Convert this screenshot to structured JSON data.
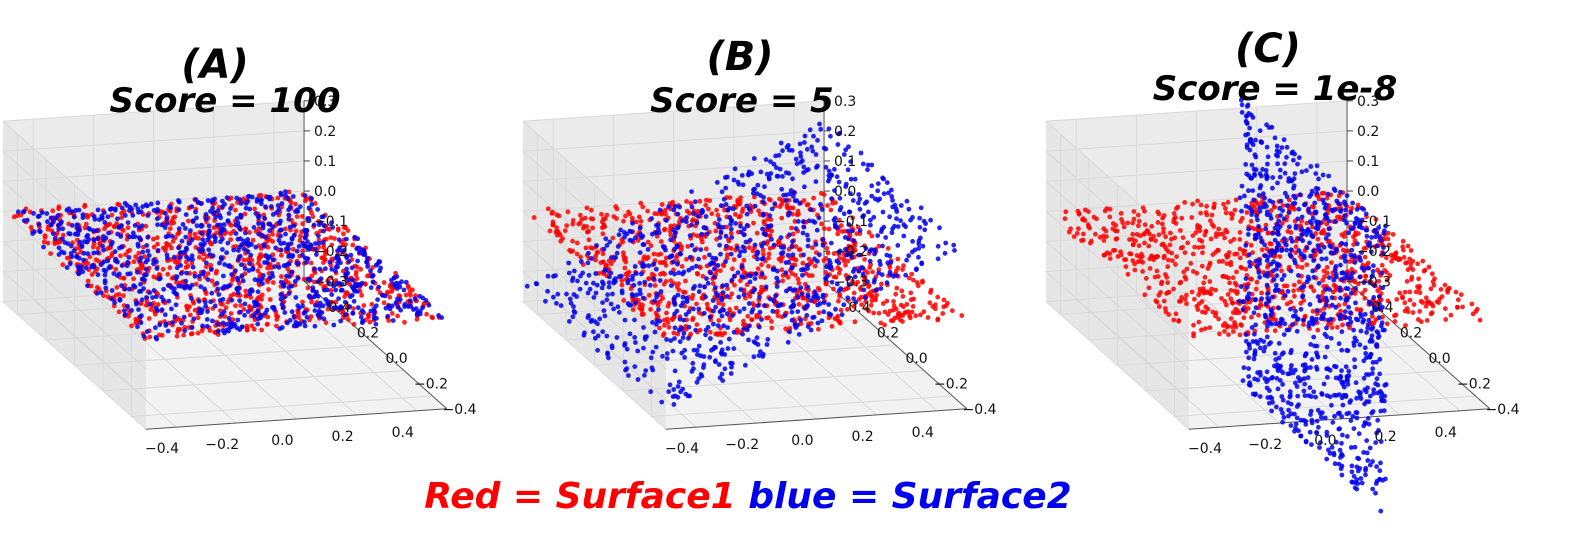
{
  "legend": {
    "red_text": "Red = Surface1",
    "blue_text": "blue = Surface2"
  },
  "colors": {
    "surface1": "#ff0000",
    "surface2": "#0000ee",
    "pane": "#f2f2f2",
    "grid": "#d9d9d9"
  },
  "chart_data": [
    {
      "type": "scatter",
      "panel_label": "(A)",
      "title": "Score = 100",
      "xlim": [
        -0.5,
        0.5
      ],
      "ylim": [
        -0.5,
        0.5
      ],
      "zlim": [
        -0.3,
        0.3
      ],
      "x_ticks": [
        "−0.4",
        "−0.2",
        "0.0",
        "0.2",
        "0.4"
      ],
      "y_ticks": [
        "−0.4",
        "−0.2",
        "0.0",
        "0.2",
        "0.4"
      ],
      "z_ticks": [
        "0.3",
        "0.2",
        "0.1",
        "0.0",
        "−0.1",
        "−0.2",
        "−0.3"
      ],
      "series": [
        {
          "name": "Surface1",
          "color": "#ff0000",
          "plane": "z = 0",
          "extent": {
            "x": [
              -0.5,
              0.5
            ],
            "y": [
              -0.5,
              0.5
            ]
          }
        },
        {
          "name": "Surface2",
          "color": "#0000ee",
          "plane": "z = 0",
          "extent": {
            "x": [
              -0.5,
              0.5
            ],
            "y": [
              -0.5,
              0.5
            ]
          }
        }
      ]
    },
    {
      "type": "scatter",
      "panel_label": "(B)",
      "title": "Score = 5",
      "xlim": [
        -0.5,
        0.5
      ],
      "ylim": [
        -0.5,
        0.5
      ],
      "zlim": [
        -0.3,
        0.3
      ],
      "x_ticks": [
        "−0.4",
        "−0.2",
        "0.0",
        "0.2",
        "0.4"
      ],
      "y_ticks": [
        "−0.4",
        "−0.2",
        "0.0",
        "0.2",
        "0.4"
      ],
      "z_ticks": [
        "0.3",
        "0.2",
        "0.1",
        "0.0",
        "−0.1",
        "−0.2",
        "−0.3"
      ],
      "series": [
        {
          "name": "Surface1",
          "color": "#ff0000",
          "plane": "z = 0",
          "extent": {
            "x": [
              -0.5,
              0.5
            ],
            "y": [
              -0.5,
              0.5
            ]
          }
        },
        {
          "name": "Surface2",
          "color": "#0000ee",
          "plane": "z = 0.3 x",
          "extent": {
            "x": [
              -0.5,
              0.5
            ],
            "y": [
              -0.5,
              0.5
            ]
          }
        }
      ]
    },
    {
      "type": "scatter",
      "panel_label": "(C)",
      "title": "Score = 1e-8",
      "xlim": [
        -0.5,
        0.5
      ],
      "ylim": [
        -0.5,
        0.5
      ],
      "zlim": [
        -0.3,
        0.3
      ],
      "x_ticks": [
        "−0.4",
        "−0.2",
        "0.0",
        "0.2",
        "0.4"
      ],
      "y_ticks": [
        "−0.4",
        "−0.2",
        "0.0",
        "0.2",
        "0.4"
      ],
      "z_ticks": [
        "0.3",
        "0.2",
        "0.1",
        "0.0",
        "−0.1",
        "−0.2",
        "−0.3"
      ],
      "series": [
        {
          "name": "Surface1",
          "color": "#ff0000",
          "plane": "z = 0",
          "extent": {
            "x": [
              -0.5,
              0.5
            ],
            "y": [
              -0.5,
              0.5
            ]
          }
        },
        {
          "name": "Surface2",
          "color": "#0000ee",
          "plane": "x = 0.15",
          "extent": {
            "y": [
              -0.5,
              0.5
            ],
            "z": [
              -0.5,
              0.5
            ]
          }
        }
      ]
    }
  ]
}
